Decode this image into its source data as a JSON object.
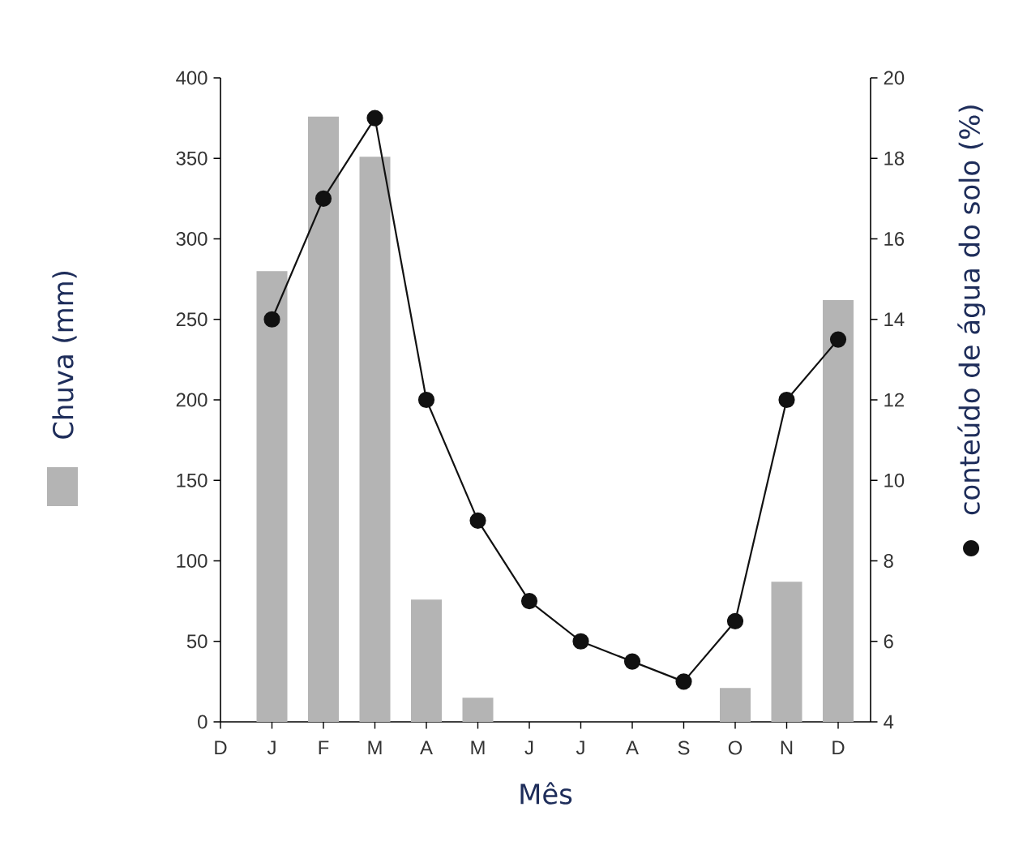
{
  "chart_data": {
    "type": "bar",
    "categories": [
      "D",
      "J",
      "F",
      "M",
      "A",
      "M",
      "J",
      "J",
      "A",
      "S",
      "O",
      "N",
      "D"
    ],
    "series": [
      {
        "color": "#b4b4b4",
        "values": [
          0,
          280,
          376,
          351,
          76,
          15,
          0,
          0,
          0,
          0,
          21,
          87,
          262
        ]
      },
      {
        "type": "line",
        "axis": "y2",
        "color": "#111111",
        "marker": "circle",
        "line_style": "solid",
        "values": [
          null,
          14,
          17,
          19,
          12,
          9,
          7,
          6,
          5.5,
          5,
          6.5,
          12,
          13.5
        ]
      }
    ],
    "xlabel": "Mês",
    "ylabel": "Chuva (mm)",
    "y2label": "conteúdo de água do solo (%)",
    "ylim": [
      0,
      400
    ],
    "yticks": [
      0,
      50,
      100,
      150,
      200,
      250,
      300,
      350,
      400
    ],
    "y2lim": [
      4,
      20
    ],
    "y2ticks": [
      4,
      6,
      8,
      10,
      12,
      14,
      16,
      18,
      20
    ]
  }
}
